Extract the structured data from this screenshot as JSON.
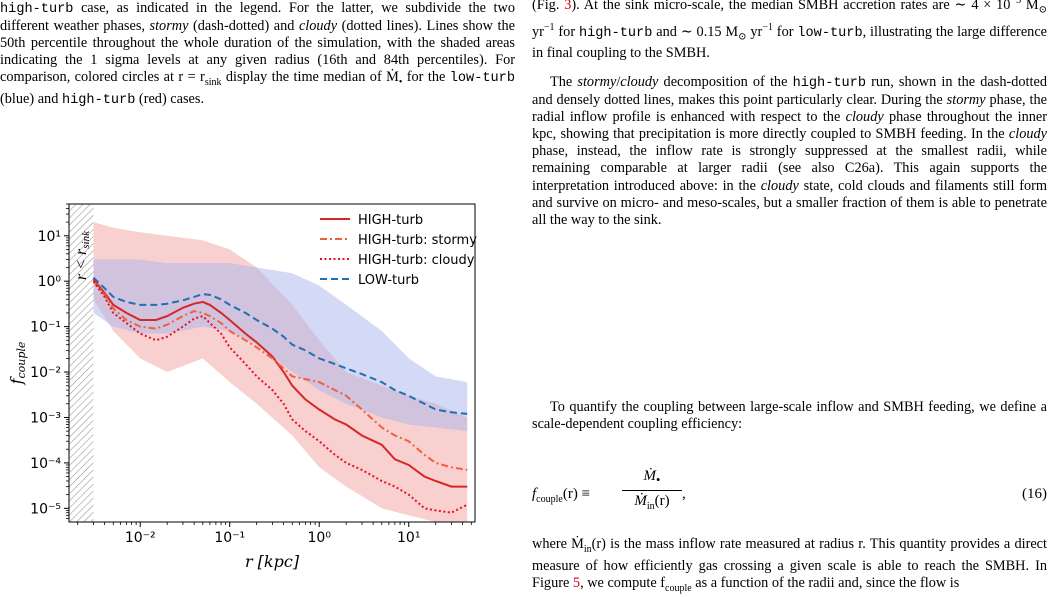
{
  "left_column": {
    "caption": [
      {
        "t": "high-turb",
        "mono": true
      },
      {
        "t": " case, as indicated in the legend. For the latter, we subdivide the two different weather phases, "
      },
      {
        "t": "stormy",
        "italic": true
      },
      {
        "t": " (dash-dotted) and "
      },
      {
        "t": "cloudy",
        "italic": true
      },
      {
        "t": " (dotted lines). Lines show the 50th percentile throughout the whole duration of the simulation, with the shaded areas indicating the 1 sigma levels at any given radius (16th and 84th percentiles). For comparison, colored circles at r = r"
      },
      {
        "t": "sink",
        "sub": true
      },
      {
        "t": " display the time median of Ṁ"
      },
      {
        "t": "•",
        "sub": true
      },
      {
        "t": " for the "
      },
      {
        "t": "low-turb",
        "mono": true
      },
      {
        "t": " (blue) and "
      },
      {
        "t": "high-turb",
        "mono": true
      },
      {
        "t": " (red) cases."
      }
    ]
  },
  "right_column": {
    "para1": [
      {
        "t": "(Fig. "
      },
      {
        "t": "3",
        "ref": true
      },
      {
        "t": "). At the sink micro-scale, the median SMBH accretion rates are ∼ 4 × 10"
      },
      {
        "t": "−3",
        "sup": true
      },
      {
        "t": " M"
      },
      {
        "t": "⊙",
        "sub": true
      },
      {
        "t": " yr"
      },
      {
        "t": "−1",
        "sup": true
      },
      {
        "t": " for "
      },
      {
        "t": "high-turb",
        "mono": true
      },
      {
        "t": " and ∼ 0.15 M"
      },
      {
        "t": "⊙",
        "sub": true
      },
      {
        "t": " yr"
      },
      {
        "t": "−1",
        "sup": true
      },
      {
        "t": " for "
      },
      {
        "t": "low-turb",
        "mono": true
      },
      {
        "t": ", illustrating the large difference in final coupling to the SMBH."
      }
    ],
    "para2": [
      {
        "t": "The "
      },
      {
        "t": "stormy",
        "italic": true
      },
      {
        "t": "/"
      },
      {
        "t": "cloudy",
        "italic": true
      },
      {
        "t": " decomposition of the "
      },
      {
        "t": "high-turb",
        "mono": true
      },
      {
        "t": " run, shown in the dash-dotted and densely dotted lines, makes this point particularly clear. During the "
      },
      {
        "t": "stormy",
        "italic": true
      },
      {
        "t": " phase, the radial inflow profile is enhanced with respect to the "
      },
      {
        "t": "cloudy",
        "italic": true
      },
      {
        "t": " phase throughout the inner kpc, showing that precipitation is more directly coupled to SMBH feeding. In the "
      },
      {
        "t": "cloudy",
        "italic": true
      },
      {
        "t": " phase, instead, the inflow rate is strongly suppressed at the smallest radii, while remaining comparable at larger radii (see also C26a). This again supports the interpretation introduced above: in the "
      },
      {
        "t": "cloudy",
        "italic": true
      },
      {
        "t": " state, cold clouds and filaments still form and survive on micro- and meso-scales, but a smaller fraction of them is able to penetrate all the way to the sink."
      }
    ],
    "para3": [
      {
        "t": "To quantify the coupling between large-scale inflow and SMBH feeding, we define a scale-dependent coupling efficiency:"
      }
    ],
    "equation_lhs": "f",
    "equation_lhs_sub": "couple",
    "equation_arg": "(r) ≡",
    "equation_num": "Ṁ",
    "equation_num_sub": "•",
    "equation_den": "Ṁ",
    "equation_den_sub": "in",
    "equation_den_arg": "(r)",
    "equation_number": "(16)",
    "para4": [
      {
        "t": "where Ṁ"
      },
      {
        "t": "in",
        "sub": true
      },
      {
        "t": "(r) is the mass inflow rate measured at radius r. This quantity provides a direct measure of how efficiently gas crossing a given scale is able to reach the SMBH. In Figure "
      },
      {
        "t": "5",
        "ref": true
      },
      {
        "t": ", we compute f"
      },
      {
        "t": "couple",
        "sub": true
      },
      {
        "t": " as a function of the radii and, since the flow is"
      }
    ]
  },
  "chart_data": {
    "type": "line",
    "title": "",
    "xlabel": "r [kpc]",
    "ylabel": "f_couple",
    "xscale": "log",
    "yscale": "log",
    "xlim": [
      0.0016,
      55
    ],
    "ylim": [
      5e-06,
      50
    ],
    "x_ticks": [
      "10⁻²",
      "10⁻¹",
      "10⁰",
      "10¹"
    ],
    "y_ticks": [
      "10⁻⁵",
      "10⁻⁴",
      "10⁻³",
      "10⁻²",
      "10⁻¹",
      "10⁰",
      "10¹"
    ],
    "excluded_region_label": "r < r_sink",
    "excluded_region_max_x": 0.003,
    "legend_position": "top-right",
    "colors": {
      "high": "#d62728",
      "stormy": "#f0603c",
      "cloudy": "#e8101e",
      "low": "#1f6fb4",
      "band_high": "#f4a2a2",
      "band_low": "#a9b4ec"
    },
    "series": [
      {
        "name": "HIGH-turb",
        "style": "solid",
        "color": "#d62728",
        "x": [
          0.003,
          0.004,
          0.005,
          0.007,
          0.01,
          0.015,
          0.02,
          0.03,
          0.04,
          0.05,
          0.06,
          0.08,
          0.1,
          0.15,
          0.2,
          0.3,
          0.4,
          0.5,
          0.7,
          1,
          1.5,
          2,
          3,
          5,
          7,
          10,
          15,
          20,
          30,
          45
        ],
        "y": [
          1.1,
          0.55,
          0.3,
          0.2,
          0.14,
          0.14,
          0.17,
          0.26,
          0.32,
          0.35,
          0.3,
          0.2,
          0.14,
          0.07,
          0.045,
          0.022,
          0.01,
          0.005,
          0.0025,
          0.0015,
          0.0009,
          0.0007,
          0.0004,
          0.00025,
          0.00012,
          9e-05,
          5e-05,
          4e-05,
          3e-05,
          3e-05
        ]
      },
      {
        "name": "HIGH-turb: stormy",
        "style": "dashdot",
        "color": "#f0603c",
        "x": [
          0.003,
          0.004,
          0.005,
          0.007,
          0.01,
          0.015,
          0.02,
          0.03,
          0.04,
          0.05,
          0.06,
          0.08,
          0.1,
          0.15,
          0.2,
          0.3,
          0.4,
          0.5,
          0.7,
          1,
          1.5,
          2,
          3,
          5,
          7,
          10,
          15,
          20,
          30,
          45
        ],
        "y": [
          1.0,
          0.5,
          0.25,
          0.14,
          0.1,
          0.09,
          0.11,
          0.17,
          0.22,
          0.2,
          0.17,
          0.12,
          0.08,
          0.05,
          0.035,
          0.02,
          0.012,
          0.008,
          0.007,
          0.006,
          0.004,
          0.003,
          0.0015,
          0.0006,
          0.0004,
          0.0003,
          0.00015,
          0.0001,
          8e-05,
          7e-05
        ]
      },
      {
        "name": "HIGH-turb: cloudy",
        "style": "dotted",
        "color": "#e8101e",
        "x": [
          0.003,
          0.004,
          0.005,
          0.007,
          0.01,
          0.015,
          0.02,
          0.03,
          0.04,
          0.05,
          0.06,
          0.08,
          0.1,
          0.15,
          0.2,
          0.3,
          0.4,
          0.5,
          0.7,
          1,
          1.5,
          2,
          3,
          5,
          7,
          10,
          15,
          20,
          30,
          45
        ],
        "y": [
          1.0,
          0.45,
          0.2,
          0.12,
          0.07,
          0.05,
          0.06,
          0.1,
          0.15,
          0.17,
          0.12,
          0.07,
          0.035,
          0.015,
          0.008,
          0.004,
          0.002,
          0.0009,
          0.0005,
          0.0003,
          0.00015,
          0.0001,
          7e-05,
          4e-05,
          3e-05,
          2e-05,
          1e-05,
          9e-06,
          8e-06,
          1.2e-05
        ]
      },
      {
        "name": "LOW-turb",
        "style": "dashed",
        "color": "#1f6fb4",
        "x": [
          0.003,
          0.004,
          0.005,
          0.007,
          0.01,
          0.015,
          0.02,
          0.03,
          0.04,
          0.05,
          0.06,
          0.08,
          0.1,
          0.15,
          0.2,
          0.3,
          0.4,
          0.5,
          0.7,
          1,
          1.5,
          2,
          3,
          5,
          7,
          10,
          15,
          20,
          30,
          45
        ],
        "y": [
          1.2,
          0.7,
          0.45,
          0.35,
          0.3,
          0.3,
          0.32,
          0.38,
          0.45,
          0.52,
          0.5,
          0.4,
          0.3,
          0.2,
          0.14,
          0.09,
          0.06,
          0.04,
          0.03,
          0.02,
          0.015,
          0.012,
          0.009,
          0.006,
          0.004,
          0.003,
          0.002,
          0.0015,
          0.0013,
          0.0012
        ]
      }
    ],
    "bands": [
      {
        "series": "HIGH-turb",
        "color": "#f4a2a2",
        "x": [
          0.003,
          0.005,
          0.01,
          0.02,
          0.05,
          0.1,
          0.2,
          0.5,
          1,
          2,
          5,
          10,
          20,
          45
        ],
        "upper": [
          20,
          15,
          12,
          10,
          8,
          5,
          2,
          0.3,
          0.05,
          0.01,
          0.005,
          0.003,
          0.002,
          0.001
        ],
        "lower": [
          0.4,
          0.08,
          0.02,
          0.01,
          0.02,
          0.006,
          0.002,
          0.0004,
          8e-05,
          3e-05,
          1e-05,
          7e-06,
          5e-06,
          5e-06
        ]
      },
      {
        "series": "LOW-turb",
        "color": "#a9b4ec",
        "x": [
          0.003,
          0.005,
          0.01,
          0.02,
          0.05,
          0.1,
          0.2,
          0.5,
          1,
          2,
          5,
          10,
          20,
          45
        ],
        "upper": [
          3,
          3,
          3,
          2.5,
          2.5,
          2.5,
          2,
          1.5,
          0.8,
          0.3,
          0.08,
          0.02,
          0.008,
          0.006
        ],
        "lower": [
          0.2,
          0.1,
          0.07,
          0.07,
          0.1,
          0.08,
          0.04,
          0.01,
          0.004,
          0.002,
          0.001,
          0.0007,
          0.0006,
          0.0005
        ]
      }
    ]
  }
}
